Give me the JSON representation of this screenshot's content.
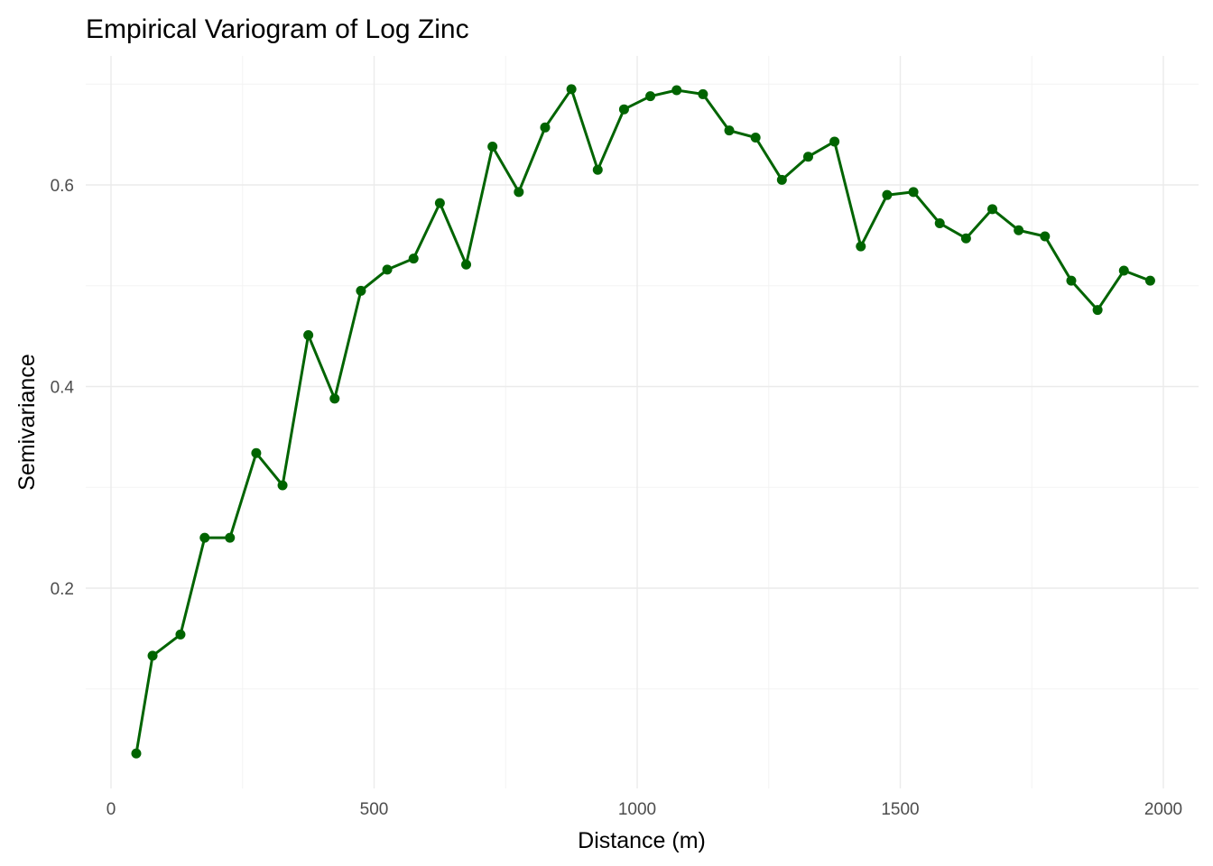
{
  "chart_data": {
    "type": "line",
    "title": "Empirical Variogram of Log Zinc",
    "xlabel": "Distance (m)",
    "ylabel": "Semivariance",
    "xlim": [
      -50,
      2070
    ],
    "ylim": [
      0.02,
      0.72
    ],
    "x_ticks": [
      0,
      500,
      1000,
      1500,
      2000
    ],
    "x_tick_labels": [
      "0",
      "500",
      "1000",
      "1500",
      "2000"
    ],
    "y_ticks": [
      0.2,
      0.4,
      0.6
    ],
    "y_tick_labels": [
      "0.2",
      "0.4",
      "0.6"
    ],
    "grid": true,
    "series": [
      {
        "color": "#006400",
        "x": [
          48,
          79,
          132,
          178,
          226,
          276,
          326,
          375,
          425,
          475,
          525,
          575,
          625,
          675,
          725,
          775,
          825,
          875,
          925,
          975,
          1025,
          1075,
          1125,
          1175,
          1225,
          1275,
          1325,
          1375,
          1425,
          1475,
          1525,
          1575,
          1625,
          1675,
          1725,
          1775,
          1825,
          1875,
          1925,
          1975
        ],
        "y": [
          0.036,
          0.133,
          0.154,
          0.25,
          0.25,
          0.334,
          0.302,
          0.451,
          0.388,
          0.495,
          0.516,
          0.527,
          0.582,
          0.521,
          0.638,
          0.593,
          0.657,
          0.695,
          0.615,
          0.675,
          0.688,
          0.694,
          0.69,
          0.654,
          0.647,
          0.605,
          0.628,
          0.643,
          0.539,
          0.59,
          0.593,
          0.562,
          0.547,
          0.576,
          0.555,
          0.549,
          0.505,
          0.476,
          0.515,
          0.505
        ]
      }
    ]
  }
}
